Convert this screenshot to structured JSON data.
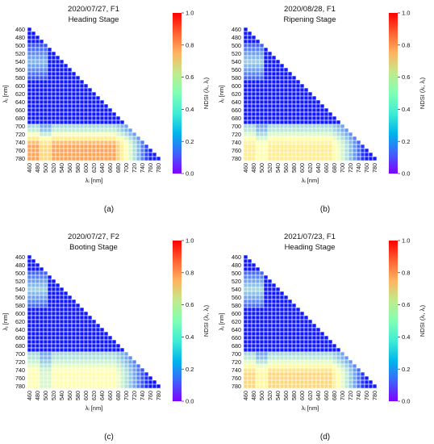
{
  "figure": {
    "colorbar": {
      "label": "NDSI (λᵢ, λⱼ)",
      "ticks": [
        "0.0",
        "0.2",
        "0.4",
        "0.6",
        "0.8",
        "1.0"
      ],
      "range": [
        0,
        1
      ]
    },
    "axis": {
      "x_label": "λᵢ [nm]",
      "y_label": "λⱼ [nm]"
    }
  },
  "chart_data": [
    {
      "type": "heatmap",
      "title_line1": "2020/07/27, F1",
      "title_line2": "Heading Stage",
      "panel_label": "(a)",
      "wavelengths": [
        460,
        470,
        480,
        490,
        500,
        510,
        520,
        530,
        540,
        550,
        560,
        570,
        580,
        590,
        600,
        610,
        620,
        630,
        640,
        650,
        660,
        670,
        680,
        690,
        700,
        710,
        720,
        730,
        740,
        750,
        760,
        770,
        780
      ],
      "x_ticks": [
        "460",
        "480",
        "500",
        "520",
        "540",
        "560",
        "580",
        "600",
        "620",
        "640",
        "660",
        "680",
        "700",
        "720",
        "740",
        "760",
        "780"
      ],
      "y_ticks": [
        "460",
        "480",
        "500",
        "520",
        "540",
        "560",
        "580",
        "600",
        "620",
        "640",
        "660",
        "680",
        "700",
        "720",
        "740",
        "760",
        "780"
      ],
      "nir_level": 0.78,
      "blue_bump": 0.25,
      "colorbar_range": [
        0,
        1
      ]
    },
    {
      "type": "heatmap",
      "title_line1": "2020/08/28, F1",
      "title_line2": "Ripening Stage",
      "panel_label": "(b)",
      "wavelengths": [
        460,
        470,
        480,
        490,
        500,
        510,
        520,
        530,
        540,
        550,
        560,
        570,
        580,
        590,
        600,
        610,
        620,
        630,
        640,
        650,
        660,
        670,
        680,
        690,
        700,
        710,
        720,
        730,
        740,
        750,
        760,
        770,
        780
      ],
      "x_ticks": [
        "460",
        "480",
        "500",
        "520",
        "540",
        "560",
        "580",
        "600",
        "620",
        "640",
        "660",
        "680",
        "700",
        "720",
        "740",
        "760",
        "780"
      ],
      "y_ticks": [
        "460",
        "480",
        "500",
        "520",
        "540",
        "560",
        "580",
        "600",
        "620",
        "640",
        "660",
        "680",
        "700",
        "720",
        "740",
        "760",
        "780"
      ],
      "nir_level": 0.62,
      "blue_bump": 0.3,
      "colorbar_range": [
        0,
        1
      ]
    },
    {
      "type": "heatmap",
      "title_line1": "2020/07/27, F2",
      "title_line2": "Booting Stage",
      "panel_label": "(c)",
      "wavelengths": [
        460,
        470,
        480,
        490,
        500,
        510,
        520,
        530,
        540,
        550,
        560,
        570,
        580,
        590,
        600,
        610,
        620,
        630,
        640,
        650,
        660,
        670,
        680,
        690,
        700,
        710,
        720,
        730,
        740,
        750,
        760,
        770,
        780
      ],
      "x_ticks": [
        "460",
        "480",
        "500",
        "520",
        "540",
        "560",
        "580",
        "600",
        "620",
        "640",
        "660",
        "680",
        "700",
        "720",
        "740",
        "760",
        "780"
      ],
      "y_ticks": [
        "460",
        "480",
        "500",
        "520",
        "540",
        "560",
        "580",
        "600",
        "620",
        "640",
        "660",
        "680",
        "700",
        "720",
        "740",
        "760",
        "780"
      ],
      "nir_level": 0.52,
      "blue_bump": 0.3,
      "colorbar_range": [
        0,
        1
      ]
    },
    {
      "type": "heatmap",
      "title_line1": "2021/07/23, F1",
      "title_line2": "Heading Stage",
      "panel_label": "(d)",
      "wavelengths": [
        460,
        470,
        480,
        490,
        500,
        510,
        520,
        530,
        540,
        550,
        560,
        570,
        580,
        590,
        600,
        610,
        620,
        630,
        640,
        650,
        660,
        670,
        680,
        690,
        700,
        710,
        720,
        730,
        740,
        750,
        760,
        770,
        780
      ],
      "x_ticks": [
        "460",
        "480",
        "500",
        "520",
        "540",
        "560",
        "580",
        "600",
        "620",
        "640",
        "660",
        "680",
        "700",
        "720",
        "740",
        "760",
        "780"
      ],
      "y_ticks": [
        "460",
        "480",
        "500",
        "520",
        "540",
        "560",
        "580",
        "600",
        "620",
        "640",
        "660",
        "680",
        "700",
        "720",
        "740",
        "760",
        "780"
      ],
      "nir_level": 0.68,
      "blue_bump": 0.32,
      "colorbar_range": [
        0,
        1
      ]
    }
  ]
}
